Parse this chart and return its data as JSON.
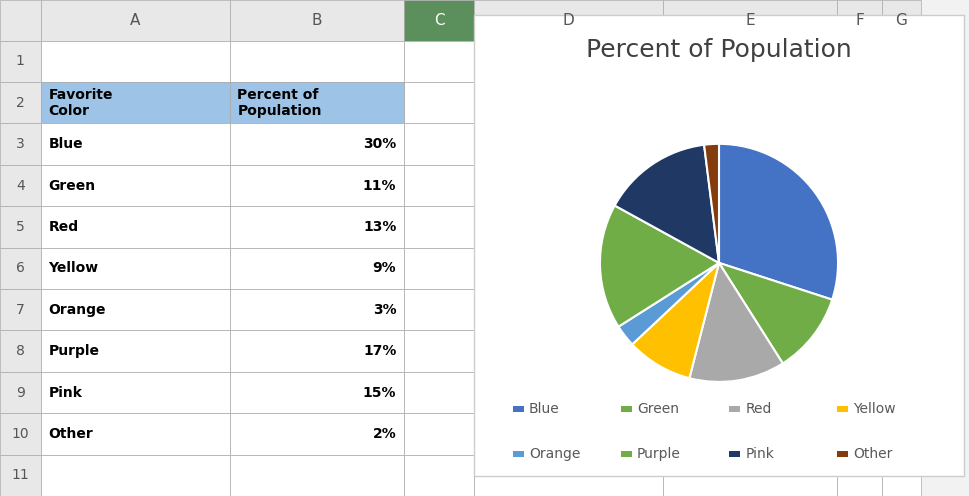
{
  "title": "Percent of Population",
  "categories": [
    "Blue",
    "Green",
    "Red",
    "Yellow",
    "Orange",
    "Purple",
    "Pink",
    "Other"
  ],
  "values": [
    30,
    11,
    13,
    9,
    3,
    17,
    15,
    2
  ],
  "pie_colors": [
    "#4472C4",
    "#70AD47",
    "#A9A9A9",
    "#FFC000",
    "#5B9BD5",
    "#70AD47",
    "#1F3864",
    "#843C0C"
  ],
  "title_fontsize": 18,
  "legend_fontsize": 11,
  "excel_bg": "#F2F2F2",
  "header_bg": "#9DC3E6",
  "col_header_bg": "#E8E8E8",
  "col_c_header_bg": "#5B8C5A",
  "col_labels_line1": [
    "Favorite",
    "Percent of"
  ],
  "col_labels_line2": [
    "Color",
    "Population"
  ],
  "row_data": [
    [
      "Blue",
      "30%"
    ],
    [
      "Green",
      "11%"
    ],
    [
      "Red",
      "13%"
    ],
    [
      "Yellow",
      "9%"
    ],
    [
      "Orange",
      "3%"
    ],
    [
      "Purple",
      "17%"
    ],
    [
      "Pink",
      "15%"
    ],
    [
      "Other",
      "2%"
    ]
  ],
  "row_numbers": [
    "1",
    "2",
    "3",
    "4",
    "5",
    "6",
    "7",
    "8",
    "9",
    "10",
    "11"
  ],
  "col_letters": [
    "A",
    "B",
    "C",
    "D",
    "E",
    "F",
    "G"
  ]
}
